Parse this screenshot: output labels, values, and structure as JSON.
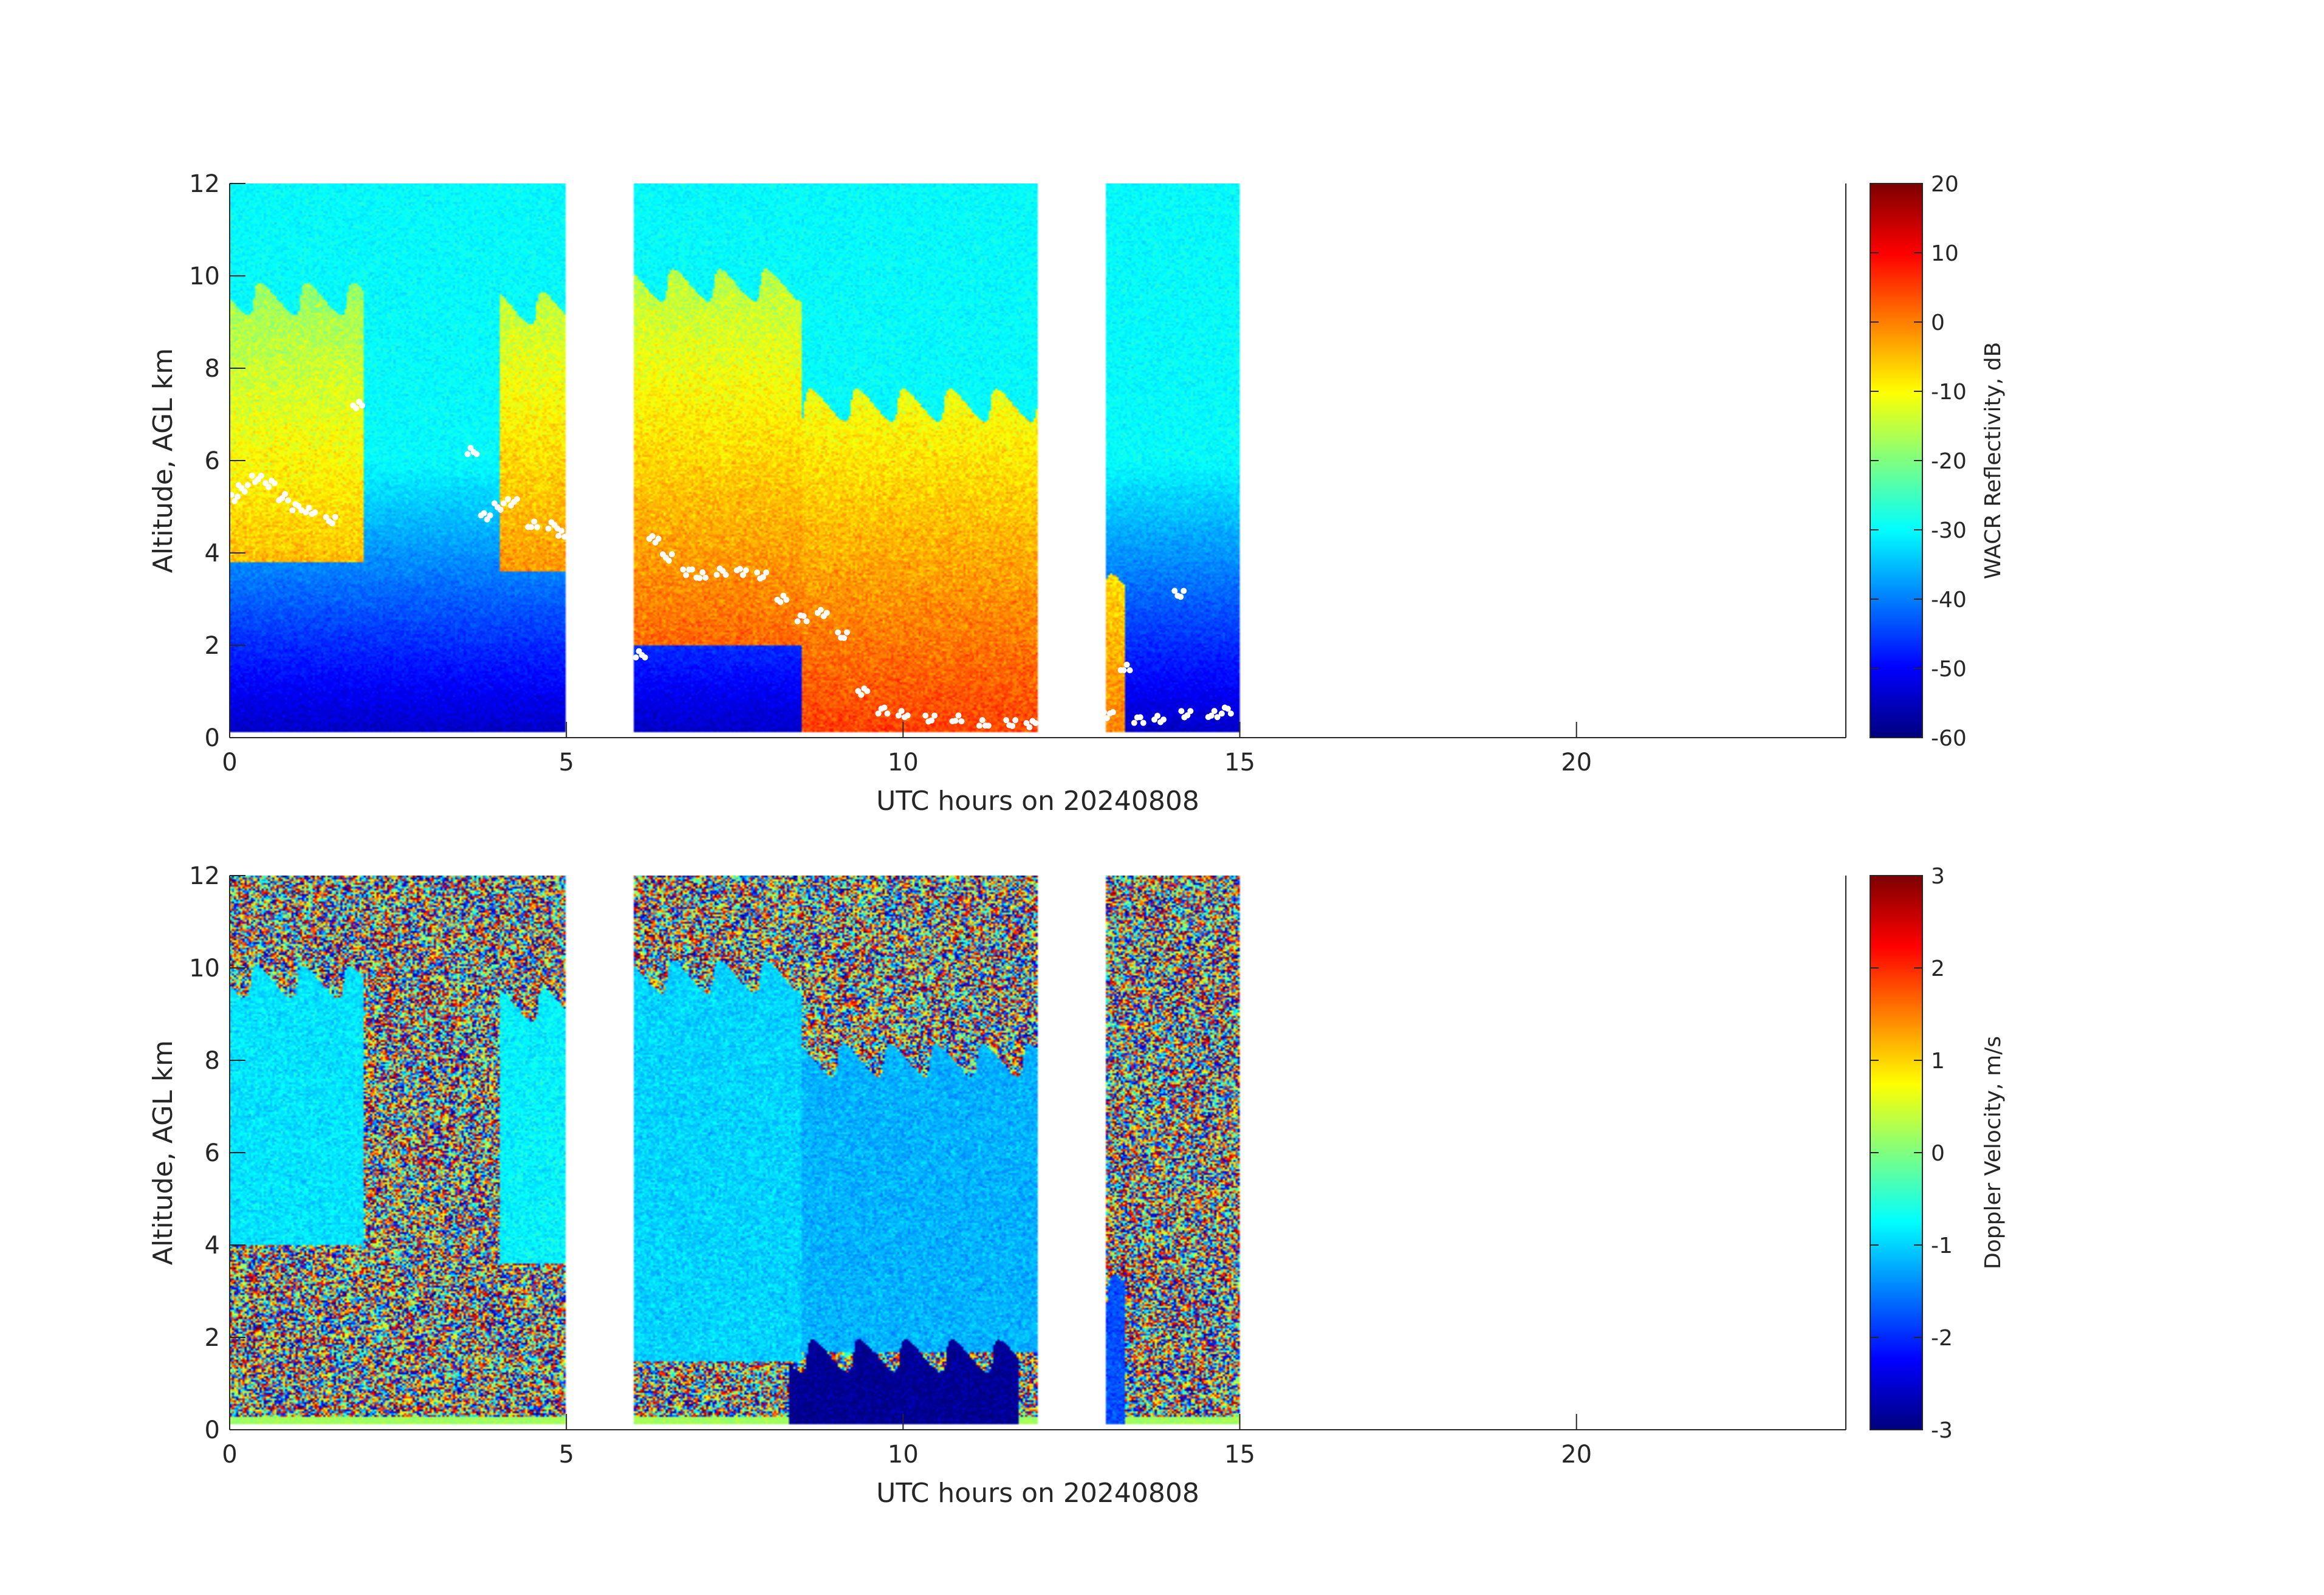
{
  "chart_data": [
    {
      "type": "heatmap",
      "title": "",
      "xlabel": "UTC hours on 20240808",
      "ylabel": "Altitude, AGL km",
      "xlim": [
        0,
        24
      ],
      "ylim": [
        0,
        12
      ],
      "x_ticks": [
        0,
        5,
        10,
        15,
        20
      ],
      "y_ticks": [
        0,
        2,
        4,
        6,
        8,
        10,
        12
      ],
      "colorbar": {
        "label": "WACR Reflectivity, dB",
        "range": [
          -60,
          20
        ],
        "ticks": [
          -60,
          -50,
          -40,
          -30,
          -20,
          -10,
          0,
          10,
          20
        ],
        "colormap": "jet"
      },
      "data_segments_hours": [
        [
          0,
          5
        ],
        [
          6,
          12
        ],
        [
          13,
          15
        ]
      ],
      "cloud_features": [
        {
          "x_range": [
            0,
            2
          ],
          "z_range": [
            3.8,
            9.5
          ],
          "dBZ": -5
        },
        {
          "x_range": [
            4,
            5
          ],
          "z_range": [
            3.6,
            9.3
          ],
          "dBZ": -2
        },
        {
          "x_range": [
            6,
            8.5
          ],
          "z_range": [
            2.0,
            9.8
          ],
          "dBZ": 2
        },
        {
          "x_range": [
            8.5,
            12
          ],
          "z_range": [
            0.1,
            7.2
          ],
          "dBZ": 5
        },
        {
          "x_range": [
            13,
            13.3
          ],
          "z_range": [
            0.1,
            3.2
          ],
          "dBZ": 0
        }
      ],
      "background_dBZ": {
        "near_surface": -55,
        "top": -30
      },
      "cloud_base_markers": {
        "color": "#ffffff",
        "points": [
          [
            0.05,
            5.2
          ],
          [
            0.2,
            5.4
          ],
          [
            0.4,
            5.6
          ],
          [
            0.6,
            5.5
          ],
          [
            0.8,
            5.2
          ],
          [
            1.0,
            5.0
          ],
          [
            1.2,
            4.9
          ],
          [
            1.5,
            4.7
          ],
          [
            1.9,
            7.2
          ],
          [
            3.6,
            6.2
          ],
          [
            3.8,
            4.8
          ],
          [
            4.0,
            5.0
          ],
          [
            4.2,
            5.1
          ],
          [
            4.5,
            4.6
          ],
          [
            4.8,
            4.6
          ],
          [
            4.95,
            4.4
          ],
          [
            6.1,
            1.8
          ],
          [
            6.3,
            4.3
          ],
          [
            6.5,
            3.9
          ],
          [
            6.8,
            3.6
          ],
          [
            7.0,
            3.5
          ],
          [
            7.3,
            3.6
          ],
          [
            7.6,
            3.6
          ],
          [
            7.9,
            3.5
          ],
          [
            8.2,
            3.0
          ],
          [
            8.5,
            2.6
          ],
          [
            8.8,
            2.7
          ],
          [
            9.1,
            2.2
          ],
          [
            9.4,
            1.0
          ],
          [
            9.7,
            0.6
          ],
          [
            10.0,
            0.5
          ],
          [
            10.4,
            0.4
          ],
          [
            10.8,
            0.4
          ],
          [
            11.2,
            0.3
          ],
          [
            11.6,
            0.3
          ],
          [
            11.9,
            0.3
          ],
          [
            13.05,
            0.5
          ],
          [
            13.3,
            1.5
          ],
          [
            13.5,
            0.4
          ],
          [
            13.8,
            0.4
          ],
          [
            14.2,
            0.5
          ],
          [
            14.6,
            0.5
          ],
          [
            14.8,
            0.6
          ],
          [
            14.1,
            3.1
          ]
        ]
      }
    },
    {
      "type": "heatmap",
      "title": "",
      "xlabel": "UTC hours on 20240808",
      "ylabel": "Altitude, AGL km",
      "xlim": [
        0,
        24
      ],
      "ylim": [
        0,
        12
      ],
      "x_ticks": [
        0,
        5,
        10,
        15,
        20
      ],
      "y_ticks": [
        0,
        2,
        4,
        6,
        8,
        10,
        12
      ],
      "colorbar": {
        "label": "Doppler Velocity, m/s",
        "range": [
          -3,
          3
        ],
        "ticks": [
          -3,
          -2,
          -1,
          0,
          1,
          2,
          3
        ],
        "colormap": "jet"
      },
      "data_segments_hours": [
        [
          0,
          5
        ],
        [
          6,
          12
        ],
        [
          13,
          15
        ]
      ],
      "cloud_features": [
        {
          "x_range": [
            0,
            2
          ],
          "z_range": [
            4.0,
            9.7
          ],
          "velocity": -0.9
        },
        {
          "x_range": [
            4,
            5
          ],
          "z_range": [
            3.6,
            9.2
          ],
          "velocity": -0.8
        },
        {
          "x_range": [
            6,
            8.5
          ],
          "z_range": [
            1.5,
            9.8
          ],
          "velocity": -1.0
        },
        {
          "x_range": [
            8.5,
            12
          ],
          "z_range": [
            1.7,
            8.0
          ],
          "velocity": -1.2
        },
        {
          "x_range": [
            8.3,
            11.7
          ],
          "z_range": [
            0.1,
            1.6
          ],
          "velocity": -2.9
        },
        {
          "x_range": [
            13,
            13.3
          ],
          "z_range": [
            0.1,
            3.0
          ],
          "velocity": -1.8
        }
      ],
      "surface_band_velocity": 0.2,
      "noise_description": "random speckle outside cloud"
    }
  ]
}
